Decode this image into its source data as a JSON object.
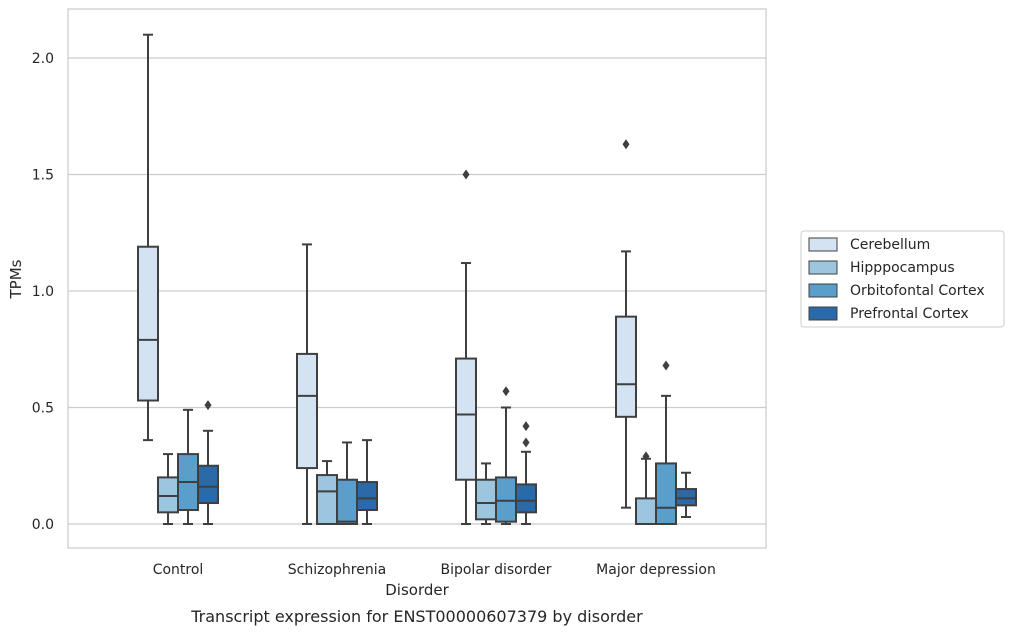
{
  "caption": "Transcript expression for ENST00000607379 by disorder",
  "chart_data": {
    "type": "box",
    "xlabel": "Disorder",
    "ylabel": "TPMs",
    "ylim": [
      -0.1,
      2.22
    ],
    "yticks": [
      0.0,
      0.5,
      1.0,
      1.5,
      2.0
    ],
    "ytick_labels": [
      "0.0",
      "0.5",
      "1.0",
      "1.5",
      "2.0"
    ],
    "grid": "horizontal",
    "legend_position": "right",
    "categories": [
      "Control",
      "Schizophrenia",
      "Bipolar disorder",
      "Major depression"
    ],
    "series": [
      {
        "name": "Cerebellum",
        "color": "#d4e3f2",
        "boxes": [
          {
            "whislo": 0.36,
            "q1": 0.53,
            "med": 0.79,
            "q3": 1.19,
            "whishi": 2.1,
            "fliers": []
          },
          {
            "whislo": 0.0,
            "q1": 0.24,
            "med": 0.55,
            "q3": 0.73,
            "whishi": 1.2,
            "fliers": []
          },
          {
            "whislo": 0.0,
            "q1": 0.19,
            "med": 0.47,
            "q3": 0.71,
            "whishi": 1.12,
            "fliers": [
              1.5
            ]
          },
          {
            "whislo": 0.07,
            "q1": 0.46,
            "med": 0.6,
            "q3": 0.89,
            "whishi": 1.17,
            "fliers": [
              1.63
            ]
          }
        ]
      },
      {
        "name": "Hipppocampus",
        "color": "#9cc5e0",
        "boxes": [
          {
            "whislo": 0.0,
            "q1": 0.05,
            "med": 0.12,
            "q3": 0.2,
            "whishi": 0.3,
            "fliers": []
          },
          {
            "whislo": 0.0,
            "q1": 0.0,
            "med": 0.14,
            "q3": 0.21,
            "whishi": 0.27,
            "fliers": []
          },
          {
            "whislo": 0.0,
            "q1": 0.02,
            "med": 0.09,
            "q3": 0.19,
            "whishi": 0.26,
            "fliers": []
          },
          {
            "whislo": 0.0,
            "q1": 0.0,
            "med": 0.0,
            "q3": 0.11,
            "whishi": 0.28,
            "fliers": [
              0.29
            ]
          }
        ]
      },
      {
        "name": "Orbitofontal Cortex",
        "color": "#5a9ecb",
        "boxes": [
          {
            "whislo": 0.0,
            "q1": 0.06,
            "med": 0.18,
            "q3": 0.3,
            "whishi": 0.49,
            "fliers": []
          },
          {
            "whislo": 0.0,
            "q1": 0.0,
            "med": 0.01,
            "q3": 0.19,
            "whishi": 0.35,
            "fliers": []
          },
          {
            "whislo": 0.0,
            "q1": 0.01,
            "med": 0.1,
            "q3": 0.2,
            "whishi": 0.5,
            "fliers": [
              0.57
            ]
          },
          {
            "whislo": 0.0,
            "q1": 0.0,
            "med": 0.07,
            "q3": 0.26,
            "whishi": 0.55,
            "fliers": [
              0.68
            ]
          }
        ]
      },
      {
        "name": "Prefrontal Cortex",
        "color": "#2b6aa9",
        "boxes": [
          {
            "whislo": 0.0,
            "q1": 0.09,
            "med": 0.16,
            "q3": 0.25,
            "whishi": 0.4,
            "fliers": [
              0.51
            ]
          },
          {
            "whislo": 0.0,
            "q1": 0.06,
            "med": 0.11,
            "q3": 0.18,
            "whishi": 0.36,
            "fliers": []
          },
          {
            "whislo": 0.0,
            "q1": 0.05,
            "med": 0.1,
            "q3": 0.17,
            "whishi": 0.31,
            "fliers": [
              0.35,
              0.42
            ]
          },
          {
            "whislo": 0.03,
            "q1": 0.08,
            "med": 0.11,
            "q3": 0.15,
            "whishi": 0.22,
            "fliers": []
          }
        ]
      }
    ]
  }
}
